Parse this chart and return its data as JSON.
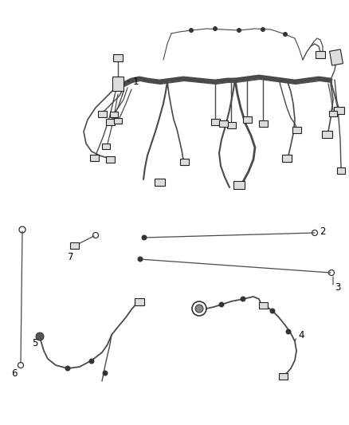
{
  "background_color": "#ffffff",
  "fig_width": 4.38,
  "fig_height": 5.33,
  "dpi": 100,
  "wire_color": "#4a4a4a",
  "label_color": "#000000",
  "label_fontsize": 8.5
}
